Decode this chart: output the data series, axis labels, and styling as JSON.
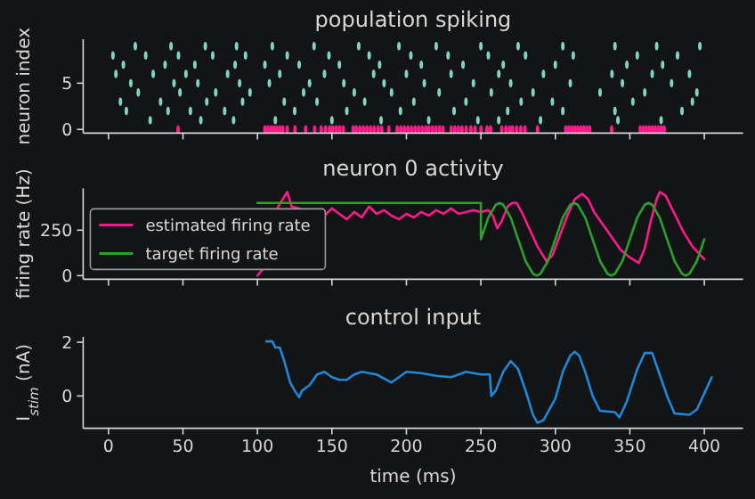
{
  "chart_data": [
    {
      "type": "scatter",
      "title": "population spiking",
      "ylabel": "neuron index",
      "xlim": [
        -17,
        426
      ],
      "xticks": [
        0,
        50,
        100,
        150,
        200,
        250,
        300,
        350,
        400
      ],
      "ylim": [
        -0.4,
        9.75
      ],
      "yticks": [
        0,
        5
      ],
      "tick_labels": "y",
      "series": [
        {
          "color": "#ff1a8c",
          "x": [
            46.7,
            105,
            107,
            109,
            111,
            113,
            115,
            117,
            120,
            125.2,
            132.4,
            138.4,
            142.8,
            145.6,
            148.4,
            150.4,
            152.8,
            155.2,
            157.6,
            164.3,
            166.3,
            168.7,
            171.1,
            173.5,
            175.9,
            178.3,
            181,
            183.4,
            188.2,
            193.8,
            196.2,
            198.6,
            201,
            203.4,
            205.8,
            208.2,
            210.6,
            213,
            215,
            217.4,
            219.8,
            222.2,
            224.6,
            230.1,
            232.5,
            234.9,
            237.3,
            240.1,
            243.3,
            246.1,
            250.1,
            254.1,
            256.5,
            264,
            266.8,
            269.2,
            271.2,
            274,
            276.8,
            279.6,
            288,
            307,
            309,
            311,
            313,
            315,
            317,
            319,
            321,
            323,
            337.8,
            357,
            359,
            361,
            363,
            365,
            367,
            369,
            371,
            373
          ],
          "values": [
            0,
            0,
            0,
            0,
            0,
            0,
            0,
            0,
            0,
            0,
            0,
            0,
            0,
            0,
            0,
            0,
            0,
            0,
            0,
            0,
            0,
            0,
            0,
            0,
            0,
            0,
            0,
            0,
            0,
            0,
            0,
            0,
            0,
            0,
            0,
            0,
            0,
            0,
            0,
            0,
            0,
            0,
            0,
            0,
            0,
            0,
            0,
            0,
            0,
            0,
            0,
            0,
            0,
            0,
            0,
            0,
            0,
            0,
            0,
            0,
            0,
            0,
            0,
            0,
            0,
            0,
            0,
            0,
            0,
            0,
            0,
            0,
            0,
            0,
            0,
            0,
            0,
            0,
            0,
            0
          ]
        },
        {
          "color": "#80d4c4",
          "x": [
            28,
            62,
            84,
            112,
            150,
            183,
            215,
            248,
            262,
            290,
            342,
            371,
            12,
            40,
            55,
            78,
            125,
            160,
            196,
            232,
            268,
            305,
            340,
            385,
            8,
            35,
            66,
            90,
            118,
            140,
            172,
            205,
            240,
            277,
            298,
            352,
            392,
            20,
            48,
            72,
            95,
            131,
            165,
            190,
            222,
            257,
            285,
            330,
            360,
            395,
            15,
            44,
            60,
            88,
            108,
            135,
            158,
            185,
            212,
            245,
            270,
            310,
            345,
            378,
            5,
            30,
            52,
            80,
            115,
            145,
            178,
            200,
            230,
            262,
            292,
            338,
            365,
            390,
            10,
            38,
            58,
            85,
            105,
            128,
            155,
            182,
            210,
            238,
            265,
            300,
            348,
            372,
            3,
            25,
            47,
            70,
            92,
            120,
            148,
            175,
            203,
            228,
            255,
            280,
            312,
            355,
            382,
            18,
            42,
            65,
            86,
            110,
            138,
            168,
            195,
            220,
            250,
            275,
            305,
            340,
            368,
            397
          ],
          "values": [
            1,
            1,
            1,
            1,
            1,
            1,
            1,
            1,
            1,
            1,
            1,
            1,
            2,
            2,
            2,
            2,
            2,
            2,
            2,
            2,
            2,
            2,
            2,
            2,
            3,
            3,
            3,
            3,
            3,
            3,
            3,
            3,
            3,
            3,
            3,
            3,
            3,
            4,
            4,
            4,
            4,
            4,
            4,
            4,
            4,
            4,
            4,
            4,
            4,
            4,
            5,
            5,
            5,
            5,
            5,
            5,
            5,
            5,
            5,
            5,
            5,
            5,
            5,
            5,
            6,
            6,
            6,
            6,
            6,
            6,
            6,
            6,
            6,
            6,
            6,
            6,
            6,
            6,
            7,
            7,
            7,
            7,
            7,
            7,
            7,
            7,
            7,
            7,
            7,
            7,
            7,
            7,
            8,
            8,
            8,
            8,
            8,
            8,
            8,
            8,
            8,
            8,
            8,
            8,
            8,
            8,
            8,
            9,
            9,
            9,
            9,
            9,
            9,
            9,
            9,
            9,
            9,
            9,
            9,
            9,
            9,
            9
          ]
        }
      ]
    },
    {
      "type": "line",
      "title": "neuron 0 activity",
      "ylabel": "firing rate (Hz)",
      "xlim": [
        -17,
        426
      ],
      "xticks": [
        0,
        50,
        100,
        150,
        200,
        250,
        300,
        350,
        400
      ],
      "ylim": [
        -20,
        480
      ],
      "yticks": [
        0,
        250
      ],
      "tick_labels": "y",
      "legend": "left",
      "series": [
        {
          "name": "estimated firing rate",
          "color": "#ff1a8c",
          "x": [
            100,
            103,
            105,
            114,
            117,
            120,
            123,
            145,
            150,
            155,
            160,
            165,
            170,
            175,
            180,
            185,
            190,
            195,
            200,
            205,
            210,
            215,
            220,
            225,
            230,
            235,
            240,
            245,
            250,
            255,
            258,
            261,
            264,
            268,
            271,
            274,
            278,
            283,
            288,
            294,
            298,
            303,
            308,
            313,
            318,
            322,
            326,
            332,
            338,
            344,
            350,
            356,
            360,
            364,
            368,
            370,
            374,
            380,
            386,
            392,
            400
          ],
          "values": [
            0,
            30,
            40,
            380,
            420,
            460,
            380,
            330,
            370,
            340,
            310,
            350,
            320,
            380,
            340,
            360,
            330,
            310,
            340,
            320,
            350,
            330,
            360,
            340,
            370,
            340,
            350,
            360,
            350,
            360,
            330,
            260,
            300,
            380,
            400,
            400,
            340,
            250,
            160,
            80,
            110,
            220,
            330,
            420,
            450,
            420,
            350,
            280,
            210,
            140,
            100,
            70,
            150,
            300,
            420,
            460,
            440,
            340,
            240,
            160,
            90
          ]
        },
        {
          "name": "target firing rate",
          "color": "#2ca02c",
          "x": [
            100,
            250,
            250,
            255,
            260,
            262.5,
            265,
            270,
            275,
            280,
            285,
            287.5,
            290,
            295,
            300,
            305,
            310,
            312.5,
            315,
            320,
            325,
            330,
            335,
            337.5,
            340,
            345,
            350,
            355,
            360,
            362.5,
            365,
            370,
            375,
            380,
            385,
            387.5,
            390,
            395,
            400
          ],
          "values": [
            400,
            400,
            200,
            320,
            390,
            400,
            390,
            320,
            200,
            80,
            10,
            0,
            10,
            80,
            200,
            320,
            390,
            400,
            390,
            320,
            200,
            80,
            10,
            0,
            10,
            80,
            200,
            320,
            390,
            400,
            390,
            320,
            200,
            80,
            10,
            0,
            10,
            80,
            200
          ]
        }
      ]
    },
    {
      "type": "line",
      "title": "control input",
      "xlabel": "time (ms)",
      "ylabel": "I$_{stim}$ (nA)",
      "xlim": [
        -17,
        426
      ],
      "xticks": [
        0,
        50,
        100,
        150,
        200,
        250,
        300,
        350,
        400
      ],
      "ylim": [
        -1.2,
        2.2
      ],
      "yticks": [
        0,
        2
      ],
      "series": [
        {
          "color": "#1f88d8",
          "x": [
            106,
            110,
            112,
            115,
            118,
            122,
            125,
            128,
            130,
            135,
            140,
            145,
            150,
            155,
            160,
            165,
            170,
            180,
            190,
            200,
            210,
            220,
            230,
            240,
            250,
            256,
            257,
            260,
            265,
            270,
            275,
            280,
            285,
            288,
            292,
            300,
            305,
            310,
            313,
            316,
            320,
            325,
            330,
            340,
            343,
            348,
            355,
            360,
            365,
            370,
            375,
            380,
            390,
            395,
            400,
            405
          ],
          "values": [
            2.03,
            2.03,
            1.8,
            1.8,
            1.3,
            0.5,
            0.2,
            -0.05,
            0.2,
            0.4,
            0.8,
            0.9,
            0.7,
            0.6,
            0.6,
            0.8,
            0.9,
            0.8,
            0.5,
            0.9,
            0.85,
            0.75,
            0.7,
            0.9,
            0.8,
            0.8,
            0.0,
            0.2,
            0.9,
            1.3,
            1.0,
            0.2,
            -0.7,
            -1.0,
            -0.9,
            -0.1,
            0.9,
            1.5,
            1.65,
            1.5,
            0.9,
            0.0,
            -0.55,
            -0.6,
            -0.8,
            -0.2,
            1.0,
            1.6,
            1.6,
            0.8,
            0.0,
            -0.65,
            -0.7,
            -0.5,
            0.1,
            0.7
          ]
        }
      ]
    }
  ]
}
